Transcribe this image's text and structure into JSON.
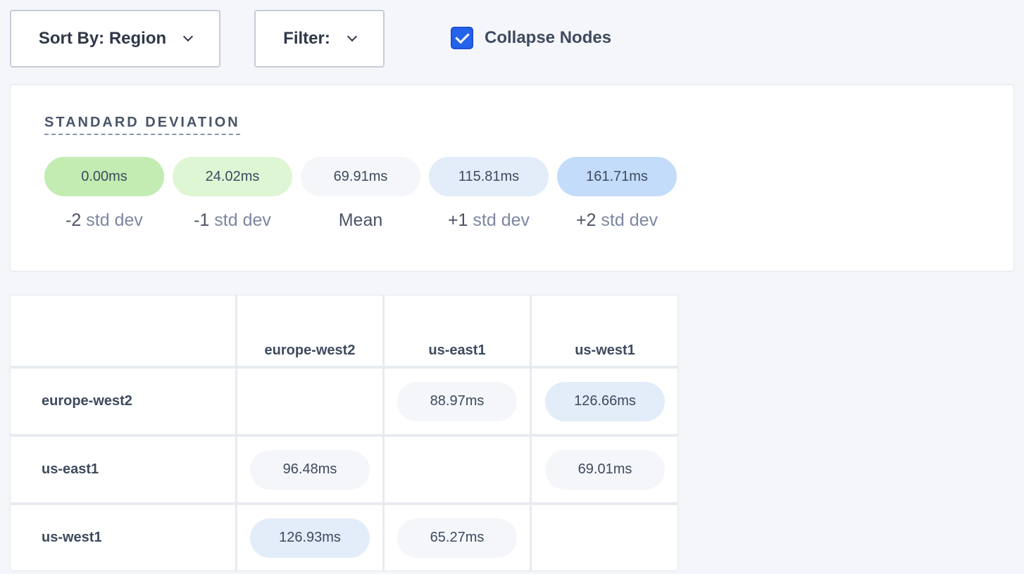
{
  "toolbar": {
    "sort_label": "Sort By: Region",
    "filter_label": "Filter:",
    "collapse_label": "Collapse Nodes",
    "collapse_checked": true
  },
  "std_dev": {
    "title": "STANDARD DEVIATION",
    "items": [
      {
        "value": "0.00ms",
        "prefix": "-2",
        "suffix": "std dev",
        "color": "#c2ecb2"
      },
      {
        "value": "24.02ms",
        "prefix": "-1",
        "suffix": "std dev",
        "color": "#dff6d5"
      },
      {
        "value": "69.91ms",
        "prefix": "Mean",
        "suffix": "",
        "color": "#f4f6fa"
      },
      {
        "value": "115.81ms",
        "prefix": "+1",
        "suffix": "std dev",
        "color": "#e2edf9"
      },
      {
        "value": "161.71ms",
        "prefix": "+2",
        "suffix": "std dev",
        "color": "#c3dcf9"
      }
    ]
  },
  "matrix": {
    "columns": [
      "europe-west2",
      "us-east1",
      "us-west1"
    ],
    "rows": [
      {
        "label": "europe-west2",
        "cells": [
          null,
          {
            "value": "88.97ms",
            "color": "#f4f6fa"
          },
          {
            "value": "126.66ms",
            "color": "#e2edf9"
          }
        ]
      },
      {
        "label": "us-east1",
        "cells": [
          {
            "value": "96.48ms",
            "color": "#f4f6fa"
          },
          null,
          {
            "value": "69.01ms",
            "color": "#f4f6fa"
          }
        ]
      },
      {
        "label": "us-west1",
        "cells": [
          {
            "value": "126.93ms",
            "color": "#e2edf9"
          },
          {
            "value": "65.27ms",
            "color": "#f4f6fa"
          },
          null
        ]
      }
    ]
  }
}
